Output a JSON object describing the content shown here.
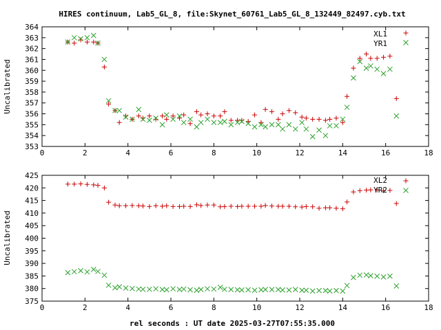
{
  "title": "HIRES continuum, Lab5_GL_8, file:Skynet_60761_Lab5_GL_8_132449_82497.cyb.txt",
  "xlabel": "rel seconds : UT date 2025-03-27T07:55:35.000",
  "colors": {
    "red": "#cc0000",
    "green": "#2aa02a"
  },
  "chart_data": [
    {
      "type": "scatter",
      "ylabel": "Uncalibrated",
      "xlim": [
        0,
        18
      ],
      "ylim": [
        353,
        364
      ],
      "xticks": [
        "0",
        "2",
        "4",
        "6",
        "8",
        "10",
        "12",
        "14",
        "16",
        "18"
      ],
      "yticks": [
        "353",
        "354",
        "355",
        "356",
        "357",
        "358",
        "359",
        "360",
        "361",
        "362",
        "363",
        "364"
      ],
      "legend_position": "top-right",
      "series": [
        {
          "name": "XL1",
          "marker": "plus",
          "color": "#cc0000",
          "x": [
            1.2,
            1.5,
            1.8,
            2.1,
            2.4,
            2.6,
            2.9,
            3.1,
            3.4,
            3.6,
            3.9,
            4.2,
            4.5,
            4.7,
            5.0,
            5.3,
            5.6,
            5.8,
            6.1,
            6.4,
            6.6,
            6.9,
            7.2,
            7.4,
            7.7,
            8.0,
            8.3,
            8.5,
            8.8,
            9.1,
            9.3,
            9.6,
            9.9,
            10.2,
            10.4,
            10.7,
            11.0,
            11.2,
            11.5,
            11.8,
            12.1,
            12.3,
            12.6,
            12.9,
            13.2,
            13.4,
            13.7,
            14.0,
            14.2,
            14.5,
            14.8,
            15.1,
            15.3,
            15.6,
            15.9,
            16.2,
            16.5
          ],
          "y": [
            362.6,
            362.5,
            362.8,
            362.6,
            362.6,
            362.5,
            360.3,
            356.9,
            356.3,
            355.2,
            355.8,
            355.5,
            355.8,
            355.6,
            355.8,
            355.5,
            355.8,
            355.5,
            355.8,
            355.6,
            355.9,
            355.1,
            356.2,
            355.9,
            356.0,
            355.8,
            355.8,
            356.2,
            355.4,
            355.4,
            355.4,
            355.3,
            355.9,
            355.2,
            356.4,
            356.2,
            355.5,
            356.0,
            356.3,
            356.1,
            355.7,
            355.6,
            355.5,
            355.5,
            355.4,
            355.5,
            355.6,
            355.2,
            357.6,
            360.2,
            361.1,
            361.5,
            361.1,
            361.1,
            361.2,
            361.3,
            357.4
          ]
        },
        {
          "name": "YR1",
          "marker": "cross",
          "color": "#2aa02a",
          "x": [
            1.2,
            1.5,
            1.8,
            2.1,
            2.4,
            2.6,
            2.9,
            3.1,
            3.4,
            3.6,
            3.9,
            4.2,
            4.5,
            4.7,
            5.0,
            5.3,
            5.6,
            5.8,
            6.1,
            6.4,
            6.6,
            6.9,
            7.2,
            7.4,
            7.7,
            8.0,
            8.3,
            8.5,
            8.8,
            9.1,
            9.3,
            9.6,
            9.9,
            10.2,
            10.4,
            10.7,
            11.0,
            11.2,
            11.5,
            11.8,
            12.1,
            12.3,
            12.6,
            12.9,
            13.2,
            13.4,
            13.7,
            14.0,
            14.2,
            14.5,
            14.8,
            15.1,
            15.3,
            15.6,
            15.9,
            16.2,
            16.5
          ],
          "y": [
            362.6,
            363.0,
            362.9,
            363.0,
            363.2,
            362.5,
            361.0,
            357.2,
            356.3,
            356.3,
            355.7,
            355.5,
            356.4,
            355.5,
            355.4,
            355.6,
            355.0,
            355.9,
            355.5,
            355.8,
            355.2,
            355.5,
            354.8,
            355.2,
            355.5,
            355.2,
            355.2,
            355.3,
            355.0,
            355.2,
            355.3,
            355.1,
            354.8,
            355.0,
            354.8,
            355.0,
            355.0,
            354.6,
            355.0,
            354.6,
            355.2,
            354.6,
            353.9,
            354.5,
            354.0,
            354.9,
            354.9,
            355.5,
            356.6,
            359.3,
            360.8,
            360.2,
            360.4,
            360.1,
            359.7,
            360.1,
            355.8
          ]
        }
      ]
    },
    {
      "type": "scatter",
      "ylabel": "Uncalibrated",
      "xlim": [
        0,
        18
      ],
      "ylim": [
        375,
        425
      ],
      "xticks": [
        "0",
        "2",
        "4",
        "6",
        "8",
        "10",
        "12",
        "14",
        "16",
        "18"
      ],
      "yticks": [
        "375",
        "380",
        "385",
        "390",
        "395",
        "400",
        "405",
        "410",
        "415",
        "420",
        "425"
      ],
      "legend_position": "top-right",
      "series": [
        {
          "name": "XL2",
          "marker": "plus",
          "color": "#cc0000",
          "x": [
            1.2,
            1.5,
            1.8,
            2.1,
            2.4,
            2.6,
            2.9,
            3.1,
            3.4,
            3.6,
            3.9,
            4.2,
            4.5,
            4.7,
            5.0,
            5.3,
            5.6,
            5.8,
            6.1,
            6.4,
            6.6,
            6.9,
            7.2,
            7.4,
            7.7,
            8.0,
            8.3,
            8.5,
            8.8,
            9.1,
            9.3,
            9.6,
            9.9,
            10.2,
            10.4,
            10.7,
            11.0,
            11.2,
            11.5,
            11.8,
            12.1,
            12.3,
            12.6,
            12.9,
            13.2,
            13.4,
            13.7,
            14.0,
            14.2,
            14.5,
            14.8,
            15.1,
            15.3,
            15.6,
            15.9,
            16.2,
            16.5
          ],
          "y": [
            421.5,
            421.5,
            421.6,
            421.4,
            421.2,
            421.0,
            420.0,
            414.3,
            413.2,
            412.9,
            412.9,
            413.0,
            412.9,
            412.8,
            412.6,
            412.9,
            412.7,
            412.9,
            412.6,
            412.6,
            412.7,
            412.6,
            413.3,
            413.0,
            413.2,
            413.2,
            412.5,
            412.6,
            412.7,
            412.6,
            412.7,
            412.7,
            412.7,
            412.7,
            413.0,
            412.8,
            412.7,
            412.7,
            412.7,
            412.5,
            412.4,
            412.6,
            412.5,
            411.9,
            412.1,
            412.1,
            411.9,
            411.7,
            414.4,
            418.4,
            418.9,
            419.1,
            419.2,
            419.2,
            418.9,
            419.0,
            413.8
          ]
        },
        {
          "name": "YR2",
          "marker": "cross",
          "color": "#2aa02a",
          "x": [
            1.2,
            1.5,
            1.8,
            2.1,
            2.4,
            2.6,
            2.9,
            3.1,
            3.4,
            3.6,
            3.9,
            4.2,
            4.5,
            4.7,
            5.0,
            5.3,
            5.6,
            5.8,
            6.1,
            6.4,
            6.6,
            6.9,
            7.2,
            7.4,
            7.7,
            8.0,
            8.3,
            8.5,
            8.8,
            9.1,
            9.3,
            9.6,
            9.9,
            10.2,
            10.4,
            10.7,
            11.0,
            11.2,
            11.5,
            11.8,
            12.1,
            12.3,
            12.6,
            12.9,
            13.2,
            13.4,
            13.7,
            14.0,
            14.2,
            14.5,
            14.8,
            15.1,
            15.3,
            15.6,
            15.9,
            16.2,
            16.5
          ],
          "y": [
            386.3,
            386.7,
            387.1,
            386.6,
            387.6,
            386.8,
            385.3,
            381.3,
            380.3,
            380.7,
            380.2,
            380.0,
            379.8,
            379.7,
            379.7,
            379.9,
            379.6,
            379.5,
            379.9,
            379.6,
            379.8,
            379.5,
            379.3,
            379.6,
            379.9,
            379.8,
            380.5,
            379.7,
            379.6,
            379.5,
            379.4,
            379.5,
            379.3,
            379.5,
            379.6,
            379.6,
            379.6,
            379.4,
            379.4,
            379.6,
            379.3,
            379.3,
            379.0,
            379.2,
            379.2,
            379.0,
            379.2,
            379.0,
            381.2,
            384.4,
            385.3,
            385.4,
            385.1,
            384.9,
            384.6,
            384.9,
            381.0
          ]
        }
      ]
    }
  ]
}
